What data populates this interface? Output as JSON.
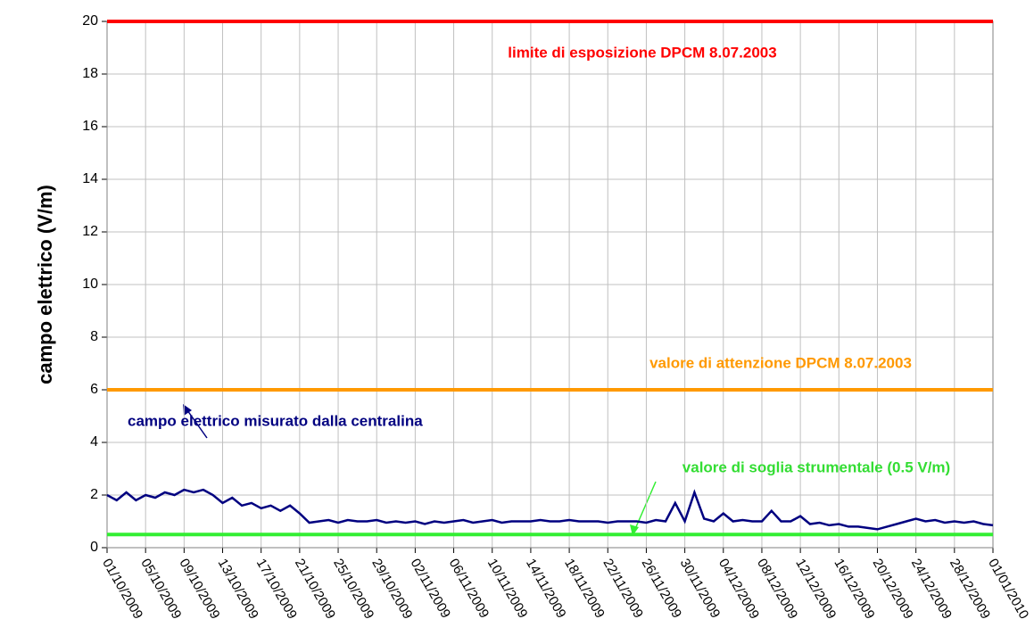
{
  "chart_data": {
    "type": "line",
    "ylabel": "campo elettrico (V/m)",
    "ylim": [
      0,
      20
    ],
    "yticks": [
      0,
      2,
      4,
      6,
      8,
      10,
      12,
      14,
      16,
      18,
      20
    ],
    "xticks": [
      "01/10/2009",
      "05/10/2009",
      "09/10/2009",
      "13/10/2009",
      "17/10/2009",
      "21/10/2009",
      "25/10/2009",
      "29/10/2009",
      "02/11/2009",
      "06/11/2009",
      "10/11/2009",
      "14/11/2009",
      "18/11/2009",
      "22/11/2009",
      "26/11/2009",
      "30/11/2009",
      "04/12/2009",
      "08/12/2009",
      "12/12/2009",
      "16/12/2009",
      "20/12/2009",
      "24/12/2009",
      "28/12/2009",
      "01/01/2010"
    ],
    "grid": true,
    "reference_lines": [
      {
        "name": "limite di esposizione DPCM 8.07.2003",
        "value": 20,
        "color": "#ff0000"
      },
      {
        "name": "valore di attenzione DPCM 8.07.2003",
        "value": 6,
        "color": "#ff9900"
      },
      {
        "name": "valore di soglia strumentale (0.5 V/m)",
        "value": 0.5,
        "color": "#33ee33"
      }
    ],
    "series": [
      {
        "name": "campo elettrico misurato dalla centralina",
        "color": "#000080",
        "x": [
          "01/10/2009",
          "02/10/2009",
          "03/10/2009",
          "04/10/2009",
          "05/10/2009",
          "06/10/2009",
          "07/10/2009",
          "08/10/2009",
          "09/10/2009",
          "10/10/2009",
          "11/10/2009",
          "12/10/2009",
          "13/10/2009",
          "14/10/2009",
          "15/10/2009",
          "16/10/2009",
          "17/10/2009",
          "18/10/2009",
          "19/10/2009",
          "20/10/2009",
          "21/10/2009",
          "22/10/2009",
          "23/10/2009",
          "24/10/2009",
          "25/10/2009",
          "26/10/2009",
          "27/10/2009",
          "28/10/2009",
          "29/10/2009",
          "30/10/2009",
          "31/10/2009",
          "01/11/2009",
          "02/11/2009",
          "03/11/2009",
          "04/11/2009",
          "05/11/2009",
          "06/11/2009",
          "07/11/2009",
          "08/11/2009",
          "09/11/2009",
          "10/11/2009",
          "11/11/2009",
          "12/11/2009",
          "13/11/2009",
          "14/11/2009",
          "15/11/2009",
          "16/11/2009",
          "17/11/2009",
          "18/11/2009",
          "19/11/2009",
          "20/11/2009",
          "21/11/2009",
          "22/11/2009",
          "23/11/2009",
          "24/11/2009",
          "25/11/2009",
          "26/11/2009",
          "27/11/2009",
          "28/11/2009",
          "29/11/2009",
          "30/11/2009",
          "01/12/2009",
          "02/12/2009",
          "03/12/2009",
          "04/12/2009",
          "05/12/2009",
          "06/12/2009",
          "07/12/2009",
          "08/12/2009",
          "09/12/2009",
          "10/12/2009",
          "11/12/2009",
          "12/12/2009",
          "13/12/2009",
          "14/12/2009",
          "15/12/2009",
          "16/12/2009",
          "17/12/2009",
          "18/12/2009",
          "19/12/2009",
          "20/12/2009",
          "21/12/2009",
          "22/12/2009",
          "23/12/2009",
          "24/12/2009",
          "25/12/2009",
          "26/12/2009",
          "27/12/2009",
          "28/12/2009",
          "29/12/2009",
          "30/12/2009",
          "31/12/2009",
          "01/01/2010"
        ],
        "values": [
          2.0,
          1.8,
          2.1,
          1.8,
          2.0,
          1.9,
          2.1,
          2.0,
          2.2,
          2.1,
          2.2,
          2.0,
          1.7,
          1.9,
          1.6,
          1.7,
          1.5,
          1.6,
          1.4,
          1.6,
          1.3,
          0.95,
          1.0,
          1.05,
          0.95,
          1.05,
          1.0,
          1.0,
          1.05,
          0.95,
          1.0,
          0.95,
          1.0,
          0.9,
          1.0,
          0.95,
          1.0,
          1.05,
          0.95,
          1.0,
          1.05,
          0.95,
          1.0,
          1.0,
          1.0,
          1.05,
          1.0,
          1.0,
          1.05,
          1.0,
          1.0,
          1.0,
          0.95,
          1.0,
          1.0,
          1.0,
          0.95,
          1.05,
          1.0,
          1.7,
          1.0,
          2.1,
          1.1,
          1.0,
          1.3,
          1.0,
          1.05,
          1.0,
          1.0,
          1.4,
          1.0,
          1.0,
          1.2,
          0.9,
          0.95,
          0.85,
          0.9,
          0.8,
          0.8,
          0.75,
          0.7,
          0.8,
          0.9,
          1.0,
          1.1,
          1.0,
          1.05,
          0.95,
          1.0,
          0.95,
          1.0,
          0.9,
          0.85
        ]
      }
    ]
  }
}
